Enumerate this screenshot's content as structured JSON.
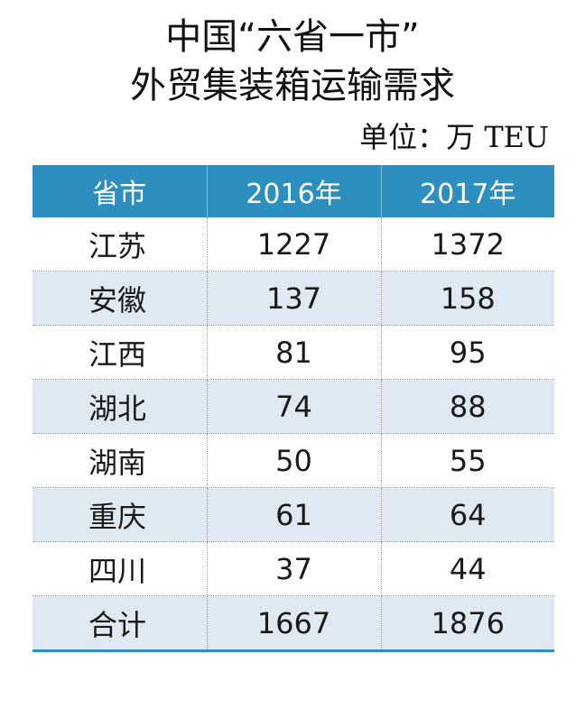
{
  "title": {
    "line1": "中国“六省一市”",
    "line2": "外贸集装箱运输需求"
  },
  "unit": "单位：万 TEU",
  "chart_data": {
    "type": "table",
    "columns": [
      "省市",
      "2016年",
      "2017年"
    ],
    "rows": [
      {
        "name": "江苏",
        "y2016": 1227,
        "y2017": 1372
      },
      {
        "name": "安徽",
        "y2016": 137,
        "y2017": 158
      },
      {
        "name": "江西",
        "y2016": 81,
        "y2017": 95
      },
      {
        "name": "湖北",
        "y2016": 74,
        "y2017": 88
      },
      {
        "name": "湖南",
        "y2016": 50,
        "y2017": 55
      },
      {
        "name": "重庆",
        "y2016": 61,
        "y2017": 64
      },
      {
        "name": "四川",
        "y2016": 37,
        "y2017": 44
      },
      {
        "name": "合计",
        "y2016": 1667,
        "y2017": 1876
      }
    ]
  },
  "colors": {
    "header_bg": "#2c8fc0",
    "header_text": "#ffffff",
    "stripe_bg": "#dfe9f4"
  }
}
